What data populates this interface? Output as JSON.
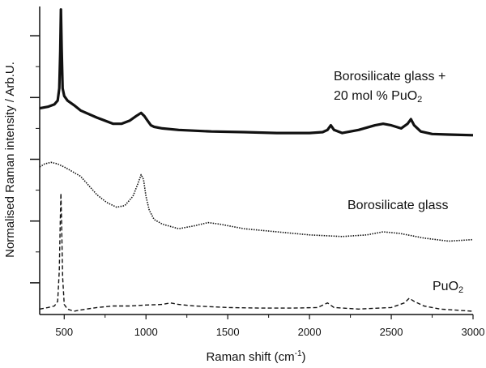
{
  "chart_data": {
    "type": "line",
    "xlabel": "Raman shift (cm",
    "xlabel_sup": "-1",
    "xlabel_close": ")",
    "ylabel": "Normalised Raman intensity / Arb.U.",
    "xlim": [
      350,
      3000
    ],
    "ylim": [
      0,
      100
    ],
    "x_ticks": [
      500,
      1000,
      1500,
      2000,
      2500,
      3000
    ],
    "x_tick_labels": [
      "500",
      "1000",
      "1500",
      "2000",
      "2500",
      "3000"
    ],
    "y_tick_labels_shown": false,
    "grid": false,
    "legend": "none",
    "annotations": [
      {
        "id": "glass_pu",
        "line1": "Borosilicate glass +",
        "line2_prefix": "20 mol % PuO",
        "line2_sub": "2"
      },
      {
        "id": "glass",
        "text": "Borosilicate glass"
      },
      {
        "id": "puo2",
        "prefix": "PuO",
        "sub": "2"
      }
    ],
    "series": [
      {
        "style": "solid-thick",
        "x": [
          350,
          400,
          440,
          460,
          470,
          476,
          480,
          484,
          490,
          500,
          520,
          560,
          600,
          700,
          800,
          850,
          900,
          940,
          970,
          990,
          1010,
          1030,
          1050,
          1100,
          1200,
          1400,
          1600,
          1800,
          2000,
          2080,
          2110,
          2130,
          2150,
          2200,
          2300,
          2400,
          2450,
          2500,
          2560,
          2600,
          2620,
          2640,
          2680,
          2750,
          2850,
          3000
        ],
        "y": [
          66.5,
          67,
          67.8,
          69,
          73,
          85,
          98.5,
          86,
          73,
          70.5,
          69,
          67.5,
          65.8,
          63.5,
          61.5,
          61.5,
          62.5,
          64,
          65,
          64,
          62.5,
          61,
          60.5,
          60,
          59.5,
          59,
          58.8,
          58.5,
          58.5,
          58.8,
          59.5,
          61,
          59.5,
          58.5,
          59.5,
          61,
          61.5,
          61,
          60,
          61.5,
          63,
          61,
          59,
          58.2,
          58,
          57.8
        ]
      },
      {
        "style": "dotted",
        "x": [
          350,
          380,
          420,
          460,
          500,
          550,
          600,
          650,
          700,
          760,
          820,
          870,
          920,
          950,
          970,
          985,
          1000,
          1020,
          1050,
          1100,
          1200,
          1300,
          1380,
          1450,
          1600,
          1800,
          2000,
          2200,
          2350,
          2450,
          2550,
          2700,
          2850,
          3000
        ],
        "y": [
          47.5,
          48.5,
          49,
          48.5,
          47.5,
          46,
          44.5,
          41.5,
          38.5,
          36,
          34.5,
          35,
          38,
          42,
          45,
          43.5,
          38,
          33.5,
          30.5,
          29,
          27.5,
          28.5,
          29.5,
          29,
          27.5,
          26.5,
          25.5,
          25,
          25.5,
          26.5,
          26,
          24.5,
          23.5,
          24
        ]
      },
      {
        "style": "dashed",
        "x": [
          350,
          400,
          440,
          460,
          470,
          476,
          480,
          484,
          490,
          500,
          520,
          560,
          600,
          700,
          800,
          900,
          1000,
          1100,
          1150,
          1200,
          1300,
          1500,
          1700,
          1900,
          2050,
          2110,
          2150,
          2300,
          2500,
          2580,
          2610,
          2640,
          2700,
          2800,
          3000
        ],
        "y": [
          1.5,
          2,
          2.5,
          4,
          14,
          30,
          39,
          29,
          12,
          3,
          1.5,
          0.8,
          1.2,
          2,
          2.5,
          2.5,
          2.8,
          3,
          3.5,
          3,
          2.5,
          2,
          1.8,
          1.8,
          2,
          3.5,
          2,
          1.5,
          2,
          3.5,
          5,
          4,
          2.5,
          1.5,
          0.8
        ]
      }
    ]
  }
}
